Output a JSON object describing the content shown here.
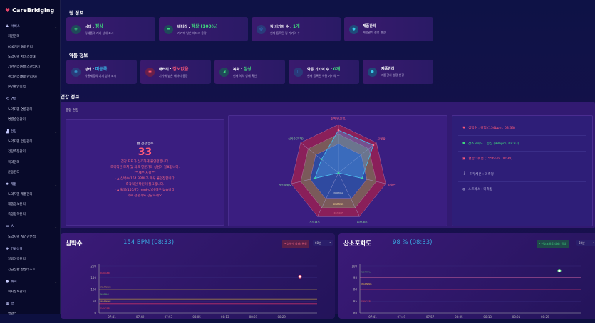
{
  "app": {
    "title": "CareBridging"
  },
  "sidebar": {
    "items": [
      {
        "label": "서비스",
        "type": "grp",
        "icon": "person-icon",
        "glyph": "♟"
      },
      {
        "label": "회원관리",
        "type": "sub"
      },
      {
        "label": "036기반 통합관리",
        "type": "sub"
      },
      {
        "label": "노약자별 서비스상태",
        "type": "sub"
      },
      {
        "label": "기관관리(서비스관리자)",
        "type": "sub"
      },
      {
        "label": "센터관리(통합관리자)",
        "type": "sub"
      },
      {
        "label": "본인확인이력",
        "type": "sub"
      },
      {
        "label": "연결",
        "type": "grp",
        "icon": "share-icon",
        "glyph": "<"
      },
      {
        "label": "노약자별 연결관리",
        "type": "sub"
      },
      {
        "label": "연결승인관리",
        "type": "sub"
      },
      {
        "label": "건강",
        "type": "grp",
        "icon": "chart-icon",
        "glyph": "▟"
      },
      {
        "label": "노약자별 건강관리",
        "type": "sub"
      },
      {
        "label": "건강측정관리",
        "type": "sub"
      },
      {
        "label": "복약관리",
        "type": "sub"
      },
      {
        "label": "운동관리",
        "type": "sub"
      },
      {
        "label": "제품",
        "type": "grp",
        "icon": "gear-icon",
        "glyph": "✹"
      },
      {
        "label": "노약자별 제품관리",
        "type": "sub"
      },
      {
        "label": "제품정보관리",
        "type": "sub"
      },
      {
        "label": "측정항목관리",
        "type": "sub"
      },
      {
        "label": "AI",
        "type": "grp",
        "icon": "monitor-icon",
        "glyph": "▬"
      },
      {
        "label": "노약자별 AI건강분석",
        "type": "sub"
      },
      {
        "label": "긴급상황",
        "type": "grp",
        "icon": "alert-icon",
        "glyph": "✚"
      },
      {
        "label": "알람이력관리",
        "type": "sub"
      },
      {
        "label": "긴급상황 발생테스트",
        "type": "sub"
      },
      {
        "label": "위치",
        "type": "grp",
        "icon": "location-icon",
        "glyph": "●"
      },
      {
        "label": "위치정보관리",
        "type": "sub"
      },
      {
        "label": "앱",
        "type": "grp",
        "icon": "grid-icon",
        "glyph": "▦"
      },
      {
        "label": "앱관리",
        "type": "sub"
      }
    ]
  },
  "ring": {
    "title": "링 정보",
    "cards": [
      {
        "label": "상태 : ",
        "value": "정상",
        "desc": "링제품의 기기 상태 표시",
        "vc": "g",
        "icon": "ring-icon",
        "bg": "#1f4a5a",
        "fg": "#3fd67d",
        "glyph": "◉"
      },
      {
        "label": "배터리 : ",
        "value": "정상 (100%)",
        "desc": "기기에 남은 배터리 용량",
        "vc": "g",
        "icon": "battery-icon",
        "bg": "#1f4a5a",
        "fg": "#3fd67d",
        "glyph": "▬"
      },
      {
        "label": "링 기기의 수 : ",
        "value": "1개",
        "desc": "현재 등록된 링 기기의 수",
        "vc": "g",
        "icon": "device-icon",
        "bg": "#2a3a7a",
        "fg": "#3a8ee8",
        "glyph": "◎"
      },
      {
        "label": "제품관리",
        "value": "",
        "desc": "제품관리 설정 변경",
        "vc": "g",
        "icon": "settings-icon",
        "bg": "#1f4a7a",
        "fg": "#3ac8e8",
        "glyph": "●"
      }
    ]
  },
  "pill": {
    "title": "약통 정보",
    "cards": [
      {
        "label": "상태 : ",
        "value": "미등록",
        "desc": "약통제품의 기기 상태 표시",
        "vc": "c",
        "icon": "pillbox-icon",
        "bg": "#2a3a7a",
        "fg": "#3ab8e8",
        "glyph": "◉"
      },
      {
        "label": "배터리 : ",
        "value": "정보없음",
        "desc": "기기에 남은 배터리 용량",
        "vc": "r",
        "icon": "battery-icon",
        "bg": "#6a1f4a",
        "fg": "#ff5a6a",
        "glyph": "▬"
      },
      {
        "label": "복약 : ",
        "value": "정상",
        "desc": "현재 복약 상태 확인",
        "vc": "g",
        "icon": "pill-icon",
        "bg": "#1f4a5a",
        "fg": "#3fd67d",
        "glyph": "◢"
      },
      {
        "label": "약통 기기의 수 : ",
        "value": "0개",
        "desc": "현재 등록된 약통 기기의 수",
        "vc": "g",
        "icon": "device-icon",
        "bg": "#2a3a7a",
        "fg": "#3a8ee8",
        "glyph": "▯"
      },
      {
        "label": "제품관리",
        "value": "",
        "desc": "제품관리 설정 변경",
        "vc": "g",
        "icon": "settings-icon",
        "bg": "#1f4a7a",
        "fg": "#3ac8e8",
        "glyph": "●"
      }
    ]
  },
  "health": {
    "title": "건강 정보",
    "panel_title": "종합 건강",
    "score_label": "건강점수",
    "score": "33",
    "lines": [
      "건강 지표가 심각하게 불안정합니다.",
      "즉각적인 조치 및 의료 전문가의 상담이 필요합니다.",
      "",
      "** 세부 사항 **",
      "- ▲ 심박수(154 BPM)가 매우 불안정합니다.",
      "즉각적인 확인이 필요합니다.",
      "- ▲ 혈압(155/75 mmHg)이 매우 높습니다.",
      "의료 전문가와 상담하세요."
    ],
    "status": [
      {
        "text": "심박수 : 위험 (154bpm, 08:33)",
        "color": "#ff5a7a",
        "icon": "heart-icon",
        "glyph": "♥"
      },
      {
        "text": "산소포화도 : 정상 (98bpm, 08:33)",
        "color": "#3fd67d",
        "icon": "oxygen-icon",
        "glyph": "●"
      },
      {
        "text": "혈압 : 위험 (155bpm, 08:34)",
        "color": "#ff5a7a",
        "icon": "blood-pressure-icon",
        "glyph": "▣"
      },
      {
        "text": "피부체온 : 미측정",
        "color": "#b9b6d9",
        "icon": "thermometer-icon",
        "glyph": "🌡"
      },
      {
        "text": "스트레스 : 미측정",
        "color": "#b9b6d9",
        "icon": "stress-icon",
        "glyph": "◍"
      }
    ]
  },
  "chart_data": [
    {
      "type": "radar",
      "title": "종합 건강",
      "axes": [
        "심박수(안정)",
        "고혈압",
        "저혈압",
        "피부체온",
        "스트레스",
        "산소포화도",
        "심박수(저하)"
      ],
      "values": [
        0.88,
        0.92,
        0.5,
        0,
        0,
        0.5,
        0.45
      ],
      "bands": [
        {
          "name": "NORMAL",
          "max": 0.6
        },
        {
          "name": "WARNING",
          "max": 0.8
        },
        {
          "name": "DANGER",
          "max": 1
        }
      ],
      "range": [
        0,
        1
      ]
    },
    {
      "type": "scatter",
      "title": "심박수",
      "current": "154 BPM (08:33)",
      "badge": "• 심박수 상태: 위험",
      "period": "60분",
      "x": [
        "07:41",
        "07:49",
        "07:57",
        "08:05",
        "08:13",
        "08:21",
        "08:29"
      ],
      "ylim": [
        0,
        200
      ],
      "yticks": [
        0,
        50,
        100,
        150,
        200
      ],
      "points": [
        {
          "x": "08:33",
          "y": 154
        }
      ],
      "thresholds": [
        {
          "y": 120,
          "color": "#c0306a"
        },
        {
          "y": 100,
          "color": "#9a7a4a"
        },
        {
          "y": 60,
          "color": "#9a7a4a"
        },
        {
          "y": 40,
          "color": "#c0306a"
        }
      ],
      "zones": [
        {
          "label": "DANGER",
          "y": 170,
          "color": "#e0405a"
        },
        {
          "label": "WARNING",
          "y": 110,
          "color": "#e0b050"
        },
        {
          "label": "NORMAL",
          "y": 80,
          "color": "#5aa070"
        },
        {
          "label": "WARNING",
          "y": 50,
          "color": "#e0b050"
        },
        {
          "label": "DANGER",
          "y": 20,
          "color": "#e0405a"
        }
      ]
    },
    {
      "type": "scatter",
      "title": "산소포화도",
      "current": "98 % (08:33)",
      "badge": "• 산소포화도 상태: 정상",
      "period": "60분",
      "x": [
        "07:41",
        "07:49",
        "07:57",
        "08:05",
        "08:13",
        "08:21",
        "08:29"
      ],
      "ylim": [
        80,
        100
      ],
      "yticks": [
        80,
        85,
        90,
        95,
        100
      ],
      "points": [
        {
          "x": "08:33",
          "y": 98
        }
      ],
      "thresholds": [
        {
          "y": 95,
          "color": "#9a4a8a"
        },
        {
          "y": 90,
          "color": "#b0306a"
        }
      ],
      "zones": [
        {
          "label": "NORMAL",
          "y": 97.5,
          "color": "#5aa070"
        },
        {
          "label": "WARNING",
          "y": 92.5,
          "color": "#e0b050"
        },
        {
          "label": "DANGER",
          "y": 85,
          "color": "#e0405a"
        }
      ]
    }
  ]
}
